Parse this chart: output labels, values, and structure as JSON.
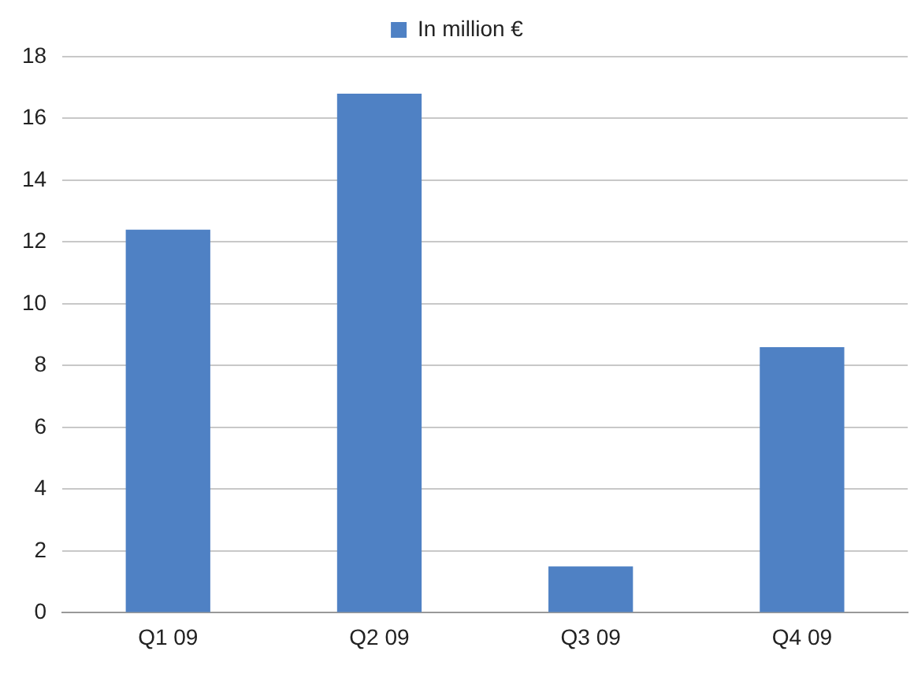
{
  "chart_data": {
    "type": "bar",
    "categories": [
      "Q1 09",
      "Q2 09",
      "Q3 09",
      "Q4 09"
    ],
    "series": [
      {
        "name": "In million €",
        "color": "#4f81c4",
        "values": [
          12.4,
          16.8,
          1.5,
          8.6
        ]
      }
    ],
    "ylim": [
      0,
      18
    ],
    "yticks": [
      0,
      2,
      4,
      6,
      8,
      10,
      12,
      14,
      16,
      18
    ],
    "grid": "y",
    "legend": "top"
  }
}
